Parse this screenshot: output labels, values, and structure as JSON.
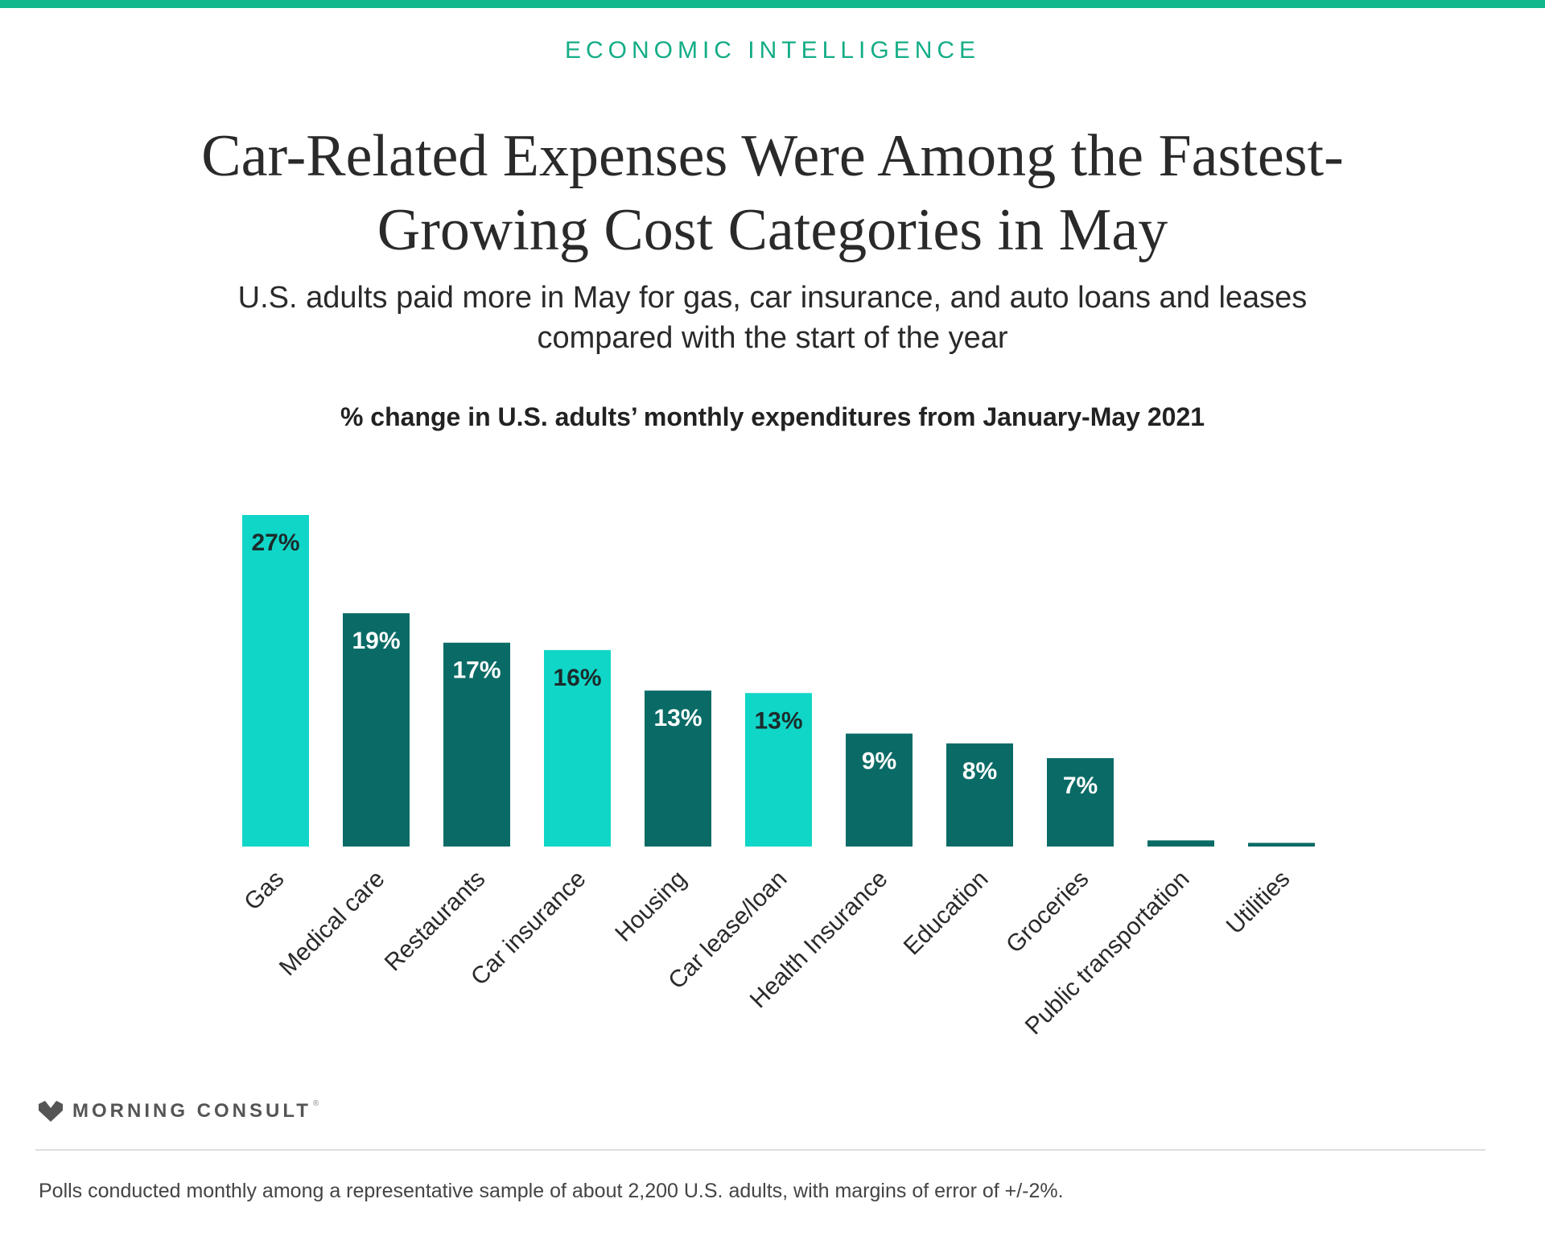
{
  "header": {
    "kicker": "ECONOMIC INTELLIGENCE",
    "accent_color": "#10b88a"
  },
  "chart_data": {
    "type": "bar",
    "title": "Car-Related Expenses Were Among the Fastest-Growing Cost Categories in May",
    "subtitle": "U.S. adults paid more in May for gas, car insurance, and auto loans and leases compared with the start of the year",
    "chart_title": "% change in U.S. adults’ monthly expenditures from January-May 2021",
    "xlabel": "",
    "ylabel": "",
    "ylim": [
      0,
      27
    ],
    "grid": false,
    "legend": "none",
    "categories": [
      "Gas",
      "Medical care",
      "Restaurants",
      "Car insurance",
      "Housing",
      "Car lease/loan",
      "Health Insurance",
      "Education",
      "Groceries",
      "Public transportation",
      "Utilities"
    ],
    "values": [
      27,
      19,
      16.6,
      16,
      12.7,
      12.5,
      9.2,
      8.4,
      7.2,
      0.5,
      0.3
    ],
    "data_labels": [
      "27%",
      "19%",
      "17%",
      "16%",
      "13%",
      "13%",
      "9%",
      "8%",
      "7%",
      "",
      ""
    ],
    "highlight": [
      true,
      false,
      false,
      true,
      false,
      true,
      false,
      false,
      false,
      false,
      false
    ],
    "colors": {
      "highlight": "#10d6c8",
      "default": "#0a6b66",
      "label_on_highlight": "#1c2b2b",
      "label_on_default": "#ffffff"
    }
  },
  "brand": {
    "name": "MORNING CONSULT",
    "mark_icon": "morning-consult-logo-icon",
    "tm": "®"
  },
  "footer": {
    "note": "Polls conducted monthly among a representative sample of about 2,200 U.S. adults, with margins of error of +/-2%."
  }
}
